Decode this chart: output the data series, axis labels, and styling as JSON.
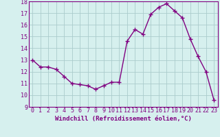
{
  "x": [
    0,
    1,
    2,
    3,
    4,
    5,
    6,
    7,
    8,
    9,
    10,
    11,
    12,
    13,
    14,
    15,
    16,
    17,
    18,
    19,
    20,
    21,
    22,
    23
  ],
  "y": [
    13.0,
    12.4,
    12.4,
    12.2,
    11.6,
    11.0,
    10.9,
    10.8,
    10.5,
    10.8,
    11.1,
    11.1,
    14.6,
    15.6,
    15.2,
    16.9,
    17.5,
    17.8,
    17.2,
    16.6,
    14.8,
    13.3,
    12.0,
    9.6
  ],
  "xlabel": "Windchill (Refroidissement éolien,°C)",
  "ylim": [
    9,
    18
  ],
  "xlim": [
    -0.5,
    23.5
  ],
  "yticks": [
    9,
    10,
    11,
    12,
    13,
    14,
    15,
    16,
    17,
    18
  ],
  "xticks": [
    0,
    1,
    2,
    3,
    4,
    5,
    6,
    7,
    8,
    9,
    10,
    11,
    12,
    13,
    14,
    15,
    16,
    17,
    18,
    19,
    20,
    21,
    22,
    23
  ],
  "line_color": "#800080",
  "marker": "+",
  "marker_size": 4.0,
  "background_color": "#d6f0ee",
  "grid_color": "#aacccc",
  "tick_color": "#800080",
  "label_color": "#800080",
  "xlabel_fontsize": 6.5,
  "tick_fontsize": 6.0,
  "linewidth": 1.0
}
